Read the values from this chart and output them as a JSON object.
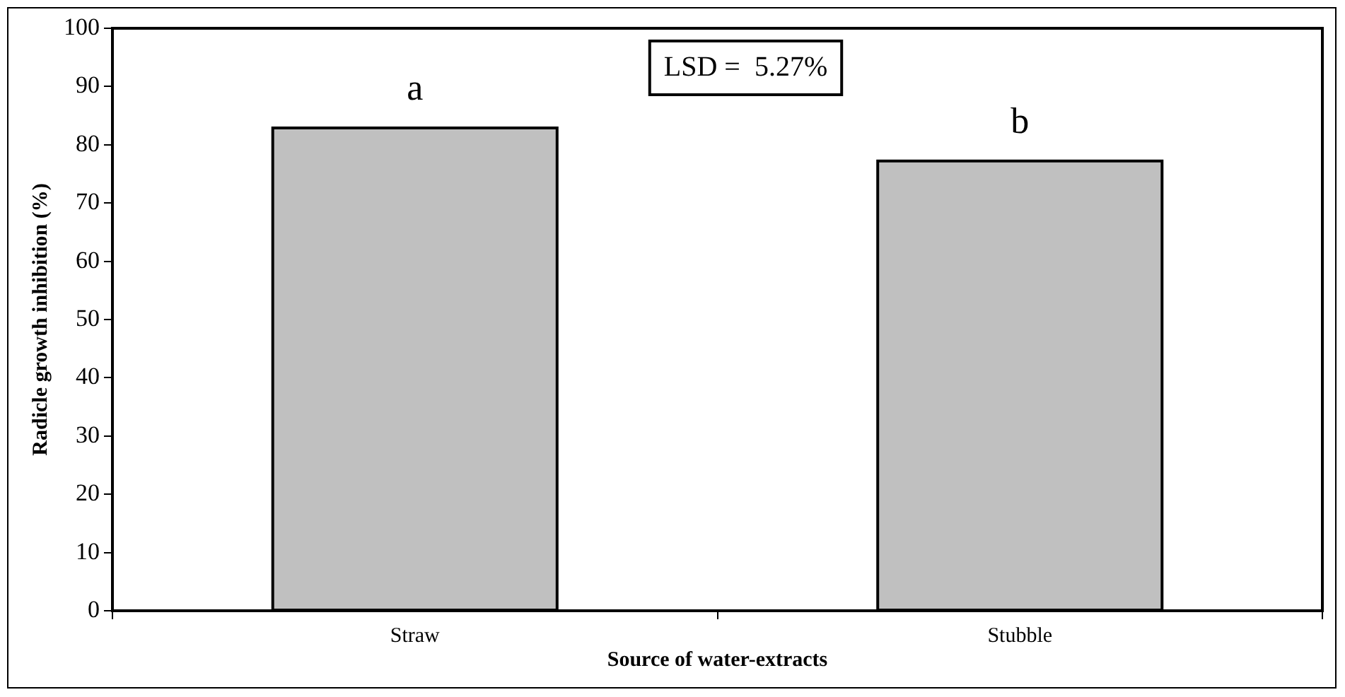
{
  "chart_data": {
    "type": "bar",
    "xlabel": "Source of water-extracts",
    "ylabel": "Radicle growth inhibition (%)",
    "categories": [
      "Straw",
      "Stubble"
    ],
    "values": [
      82.9,
      77.2
    ],
    "color": "#c0c0c0",
    "ylim": [
      0,
      100
    ],
    "yticks": [
      0,
      10,
      20,
      30,
      40,
      50,
      60,
      70,
      80,
      90,
      100
    ],
    "grid": false,
    "legend": false,
    "value_labels": [
      "a",
      "b"
    ],
    "annotations": [
      "LSD =  5.27%"
    ]
  }
}
